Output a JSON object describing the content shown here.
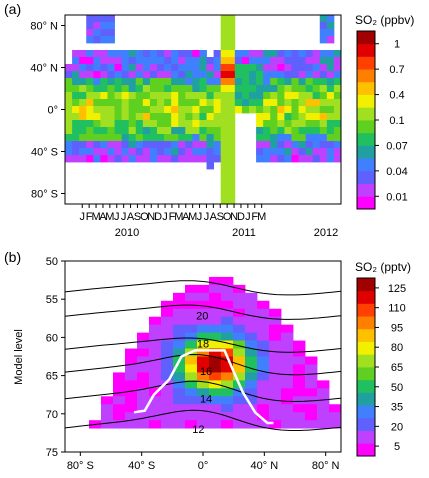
{
  "chart_data": [
    {
      "type": "heatmap",
      "panel_label": "(a)",
      "colorbar_title": "SO₂ (ppbv)",
      "colorbar_ticks": [
        "1",
        "0.7",
        "0.4",
        "0.1",
        "0.07",
        "0.04",
        "0.01"
      ],
      "ytick_labels": [
        "80° N",
        "40° N",
        "0°",
        "40° S",
        "80° S"
      ],
      "xtick_months": [
        "J",
        "F",
        "M",
        "A",
        "M",
        "J",
        "J",
        "A",
        "S",
        "O",
        "N",
        "D",
        "J",
        "F",
        "M",
        "A",
        "M",
        "J",
        "J",
        "A",
        "S",
        "O",
        "N",
        "D",
        "J",
        "F",
        "M"
      ],
      "year_labels": [
        "2010",
        "2011",
        "2012"
      ],
      "ylim": [
        -90,
        90
      ],
      "time_range": [
        "2009-01",
        "2012-03"
      ]
    },
    {
      "type": "heatmap",
      "panel_label": "(b)",
      "colorbar_title": "SO₂ (pptv)",
      "colorbar_ticks": [
        "125",
        "110",
        "95",
        "80",
        "65",
        "50",
        "35",
        "20",
        "5"
      ],
      "ylabel": "Model level",
      "ytick_labels": [
        "50",
        "55",
        "60",
        "65",
        "70",
        "75"
      ],
      "xtick_labels": [
        "80° S",
        "40° S",
        "0°",
        "40° N",
        "80° N"
      ],
      "contour_labels": [
        "20",
        "18",
        "16",
        "14",
        "12"
      ],
      "ylim": [
        75,
        50
      ],
      "xlim": [
        -90,
        90
      ]
    }
  ],
  "colors": {
    "scale": [
      "#ff00ff",
      "#c040ff",
      "#6060ff",
      "#4080ff",
      "#20a0a0",
      "#20c060",
      "#60d020",
      "#a0e020",
      "#f0f000",
      "#ffc000",
      "#ff8000",
      "#ff4000",
      "#e00000",
      "#a00000"
    ],
    "contour": "#000000",
    "outline": "#ffffff"
  }
}
